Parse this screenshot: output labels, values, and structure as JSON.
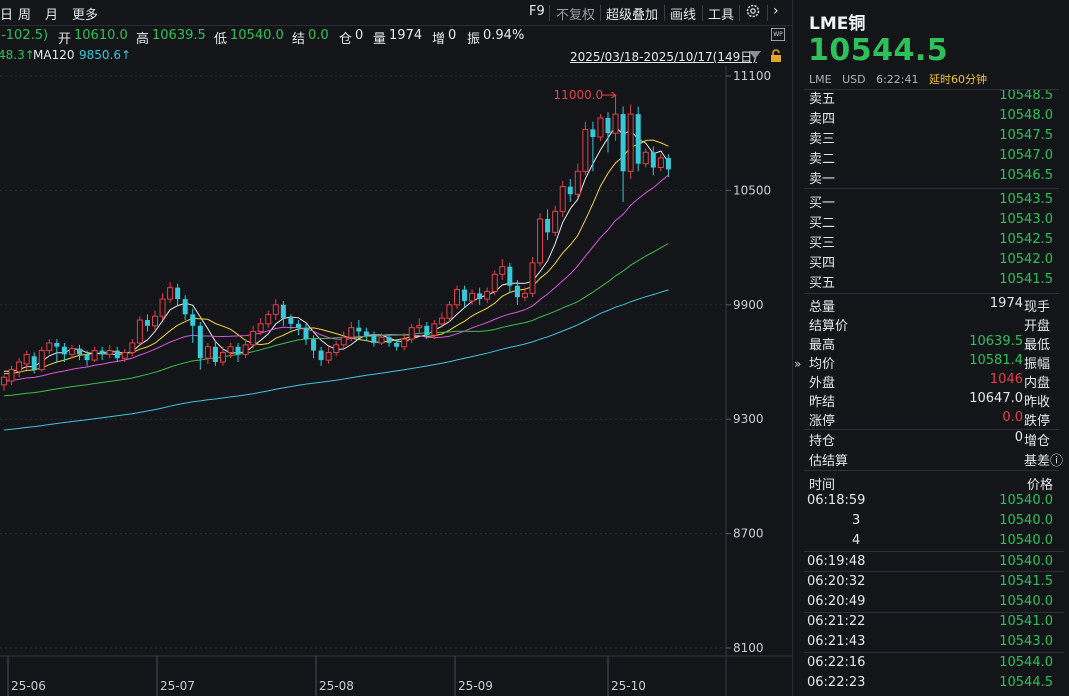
{
  "toolbar": {
    "period_day": "日",
    "period_week": "周",
    "period_month": "月",
    "period_more": "更多",
    "f9": "F9",
    "no_adjust": "不复权",
    "overlay": "超级叠加",
    "draw": "画线",
    "tools": "工具",
    "next": "›"
  },
  "quote": {
    "change": "(-102.5)",
    "open_label": "开",
    "open": "10610.0",
    "high_label": "高",
    "high": "10639.5",
    "low_label": "低",
    "low": "10540.0",
    "settle_label": "结",
    "settle": "0.0",
    "oi_label": "仓",
    "oi": "0",
    "vol_label": "量",
    "vol": "1974",
    "inc_label": "增",
    "inc": "0",
    "amp_label": "振",
    "amp": "0.94%"
  },
  "ma": {
    "ma60_value": "48.3↑",
    "ma120_label": "MA120",
    "ma120_value": "9850.6↑"
  },
  "range": "2025/03/18-2025/10/17(149日)",
  "wp_badge": "WP",
  "chart_data": {
    "type": "candlestick",
    "y_ticks": [
      "11100",
      "10500",
      "9900",
      "9300",
      "8700",
      "8100"
    ],
    "ylim": [
      8100,
      11100
    ],
    "x_ticks": [
      "25-06",
      "25-07",
      "25-08",
      "25-09",
      "25-10"
    ],
    "max_marker": "11000.0",
    "candles": [
      [
        9480,
        9520,
        9450,
        9530
      ],
      [
        9500,
        9560,
        9480,
        9580
      ],
      [
        9550,
        9600,
        9520,
        9620
      ],
      [
        9590,
        9640,
        9560,
        9660
      ],
      [
        9630,
        9560,
        9540,
        9650
      ],
      [
        9560,
        9660,
        9550,
        9680
      ],
      [
        9660,
        9700,
        9640,
        9720
      ],
      [
        9700,
        9680,
        9600,
        9720
      ],
      [
        9680,
        9640,
        9600,
        9700
      ],
      [
        9640,
        9670,
        9620,
        9690
      ],
      [
        9670,
        9640,
        9610,
        9690
      ],
      [
        9640,
        9610,
        9580,
        9660
      ],
      [
        9610,
        9660,
        9600,
        9680
      ],
      [
        9660,
        9640,
        9610,
        9680
      ],
      [
        9640,
        9660,
        9620,
        9690
      ],
      [
        9660,
        9620,
        9600,
        9680
      ],
      [
        9620,
        9650,
        9600,
        9670
      ],
      [
        9650,
        9700,
        9630,
        9720
      ],
      [
        9700,
        9820,
        9690,
        9840
      ],
      [
        9820,
        9790,
        9760,
        9850
      ],
      [
        9790,
        9840,
        9770,
        9870
      ],
      [
        9840,
        9930,
        9820,
        9960
      ],
      [
        9930,
        9990,
        9910,
        10020
      ],
      [
        9990,
        9930,
        9890,
        10010
      ],
      [
        9930,
        9850,
        9820,
        9950
      ],
      [
        9850,
        9790,
        9700,
        9880
      ],
      [
        9790,
        9620,
        9560,
        9810
      ],
      [
        9620,
        9680,
        9590,
        9700
      ],
      [
        9680,
        9600,
        9580,
        9710
      ],
      [
        9600,
        9650,
        9580,
        9680
      ],
      [
        9650,
        9680,
        9620,
        9700
      ],
      [
        9680,
        9640,
        9600,
        9700
      ],
      [
        9640,
        9690,
        9620,
        9720
      ],
      [
        9690,
        9760,
        9670,
        9790
      ],
      [
        9760,
        9800,
        9740,
        9830
      ],
      [
        9800,
        9850,
        9780,
        9870
      ],
      [
        9850,
        9900,
        9820,
        9930
      ],
      [
        9900,
        9830,
        9790,
        9920
      ],
      [
        9830,
        9800,
        9770,
        9850
      ],
      [
        9800,
        9780,
        9740,
        9820
      ],
      [
        9780,
        9720,
        9690,
        9800
      ],
      [
        9720,
        9660,
        9620,
        9740
      ],
      [
        9660,
        9610,
        9580,
        9680
      ],
      [
        9610,
        9650,
        9590,
        9680
      ],
      [
        9650,
        9690,
        9630,
        9710
      ],
      [
        9690,
        9730,
        9670,
        9760
      ],
      [
        9730,
        9780,
        9710,
        9810
      ],
      [
        9780,
        9760,
        9730,
        9820
      ],
      [
        9760,
        9740,
        9710,
        9780
      ],
      [
        9740,
        9700,
        9680,
        9760
      ],
      [
        9700,
        9730,
        9690,
        9750
      ],
      [
        9730,
        9700,
        9680,
        9740
      ],
      [
        9700,
        9680,
        9660,
        9720
      ],
      [
        9680,
        9720,
        9660,
        9750
      ],
      [
        9720,
        9780,
        9700,
        9800
      ],
      [
        9780,
        9790,
        9750,
        9830
      ],
      [
        9790,
        9740,
        9720,
        9810
      ],
      [
        9740,
        9800,
        9720,
        9820
      ],
      [
        9800,
        9830,
        9780,
        9860
      ],
      [
        9830,
        9900,
        9810,
        9920
      ],
      [
        9900,
        9980,
        9880,
        10000
      ],
      [
        9980,
        9920,
        9890,
        10000
      ],
      [
        9920,
        9960,
        9900,
        9980
      ],
      [
        9960,
        9930,
        9900,
        9990
      ],
      [
        9930,
        9970,
        9910,
        9990
      ],
      [
        9970,
        10060,
        9950,
        10080
      ],
      [
        10060,
        10100,
        10030,
        10140
      ],
      [
        10100,
        10000,
        9960,
        10120
      ],
      [
        10000,
        9940,
        9900,
        10030
      ],
      [
        9940,
        9960,
        9920,
        9990
      ],
      [
        9960,
        10120,
        9940,
        10150
      ],
      [
        10120,
        10350,
        10100,
        10380
      ],
      [
        10350,
        10280,
        10240,
        10400
      ],
      [
        10280,
        10390,
        10260,
        10420
      ],
      [
        10390,
        10520,
        10360,
        10550
      ],
      [
        10520,
        10480,
        10440,
        10560
      ],
      [
        10480,
        10600,
        10460,
        10640
      ],
      [
        10600,
        10820,
        10580,
        10860
      ],
      [
        10820,
        10780,
        10600,
        10860
      ],
      [
        10780,
        10880,
        10760,
        10900
      ],
      [
        10880,
        10800,
        10700,
        10910
      ],
      [
        10800,
        10900,
        10760,
        11000
      ],
      [
        10900,
        10600,
        10440,
        10940
      ],
      [
        10600,
        10900,
        10560,
        10950
      ],
      [
        10900,
        10640,
        10600,
        10940
      ],
      [
        10640,
        10700,
        10620,
        10720
      ],
      [
        10700,
        10620,
        10580,
        10730
      ],
      [
        10620,
        10670,
        10600,
        10690
      ],
      [
        10670,
        10610,
        10570,
        10690
      ]
    ],
    "ma_colors": [
      "#e8e8e8",
      "#f3d23a",
      "#d955d9",
      "#3ebd4a",
      "#3ec4e0"
    ],
    "colors": {
      "up": "#e0424a",
      "down": "#38c8d8"
    }
  },
  "panel": {
    "title": "LME铜",
    "last_price": "10544.5",
    "exchange": "LME",
    "currency": "USD",
    "time": "6:22:41",
    "delay": "延时60分钟",
    "asks": [
      {
        "name": "卖五",
        "price": "10548.5"
      },
      {
        "name": "卖四",
        "price": "10548.0"
      },
      {
        "name": "卖三",
        "price": "10547.5"
      },
      {
        "name": "卖二",
        "price": "10547.0"
      },
      {
        "name": "卖一",
        "price": "10546.5"
      }
    ],
    "bids": [
      {
        "name": "买一",
        "price": "10543.5"
      },
      {
        "name": "买二",
        "price": "10543.0"
      },
      {
        "name": "买三",
        "price": "10542.5"
      },
      {
        "name": "买四",
        "price": "10542.0"
      },
      {
        "name": "买五",
        "price": "10541.5"
      }
    ],
    "stats": [
      {
        "l": "总量",
        "v": "1974",
        "c": "#e6e7ea",
        "r": "现手"
      },
      {
        "l": "结算价",
        "v": "",
        "c": "#e6e7ea",
        "r": "开盘"
      },
      {
        "l": "最高",
        "v": "10639.5",
        "c": "#2ec15a",
        "r": "最低"
      },
      {
        "l": "均价",
        "v": "10581.4",
        "c": "#2ec15a",
        "r": "振幅"
      },
      {
        "l": "外盘",
        "v": "1046",
        "c": "#e0424a",
        "r": "内盘"
      },
      {
        "l": "昨结",
        "v": "10647.0",
        "c": "#e6e7ea",
        "r": "昨收"
      },
      {
        "l": "涨停",
        "v": "0.0",
        "c": "#e0424a",
        "r": "跌停"
      },
      {
        "l": "持仓",
        "v": "0",
        "c": "#e6e7ea",
        "r": "增仓"
      },
      {
        "l": "估结算",
        "v": "",
        "c": "#e6e7ea",
        "r": "基差ⓘ"
      }
    ],
    "ticks_header_time": "时间",
    "ticks_header_price": "价格",
    "ticks": [
      {
        "t": "06:18:59",
        "p": "10540.0",
        "indent": false
      },
      {
        "t": "3",
        "p": "10540.0",
        "indent": true
      },
      {
        "t": "4",
        "p": "10540.0",
        "indent": true
      },
      {
        "t": "06:19:48",
        "p": "10540.0",
        "indent": false
      },
      {
        "t": "06:20:32",
        "p": "10541.5",
        "indent": false
      },
      {
        "t": "06:20:49",
        "p": "10540.0",
        "indent": false
      },
      {
        "t": "06:21:22",
        "p": "10541.0",
        "indent": false
      },
      {
        "t": "06:21:43",
        "p": "10543.0",
        "indent": false
      },
      {
        "t": "06:22:16",
        "p": "10544.0",
        "indent": false
      },
      {
        "t": "06:22:23",
        "p": "10544.5",
        "indent": false
      }
    ]
  }
}
